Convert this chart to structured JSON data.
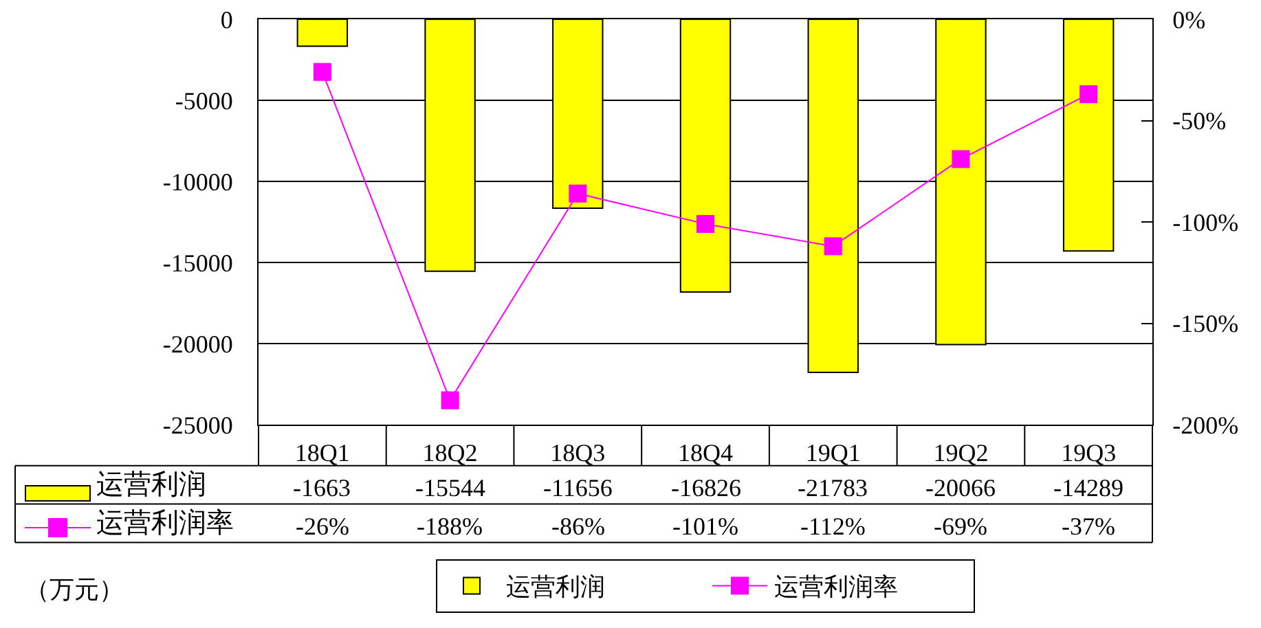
{
  "chart_data": {
    "type": "bar",
    "categories": [
      "18Q1",
      "18Q2",
      "18Q3",
      "18Q4",
      "19Q1",
      "19Q2",
      "19Q3"
    ],
    "series": [
      {
        "name": "运营利润",
        "color": "#ffff00",
        "values": [
          -1663,
          -15544,
          -11656,
          -16826,
          -21783,
          -20066,
          -14289
        ],
        "value_labels": [
          "-1663",
          "-15544",
          "-11656",
          "-16826",
          "-21783",
          "-20066",
          "-14289"
        ]
      },
      {
        "name": "运营利润率",
        "type": "line",
        "axis": "y2",
        "color": "#ff00ff",
        "values": [
          -26,
          -188,
          -86,
          -101,
          -112,
          -69,
          -37
        ],
        "value_labels": [
          "-26%",
          "-188%",
          "-86%",
          "-101%",
          "-112%",
          "-69%",
          "-37%"
        ]
      }
    ],
    "ylim": [
      -25000,
      0
    ],
    "yticks": [
      0,
      -5000,
      -10000,
      -15000,
      -20000,
      -25000
    ],
    "y2lim": [
      -200,
      0
    ],
    "y2ticks": [
      {
        "value": 0,
        "label": "0%"
      },
      {
        "value": -50,
        "label": "-50%"
      },
      {
        "value": -100,
        "label": "-100%"
      },
      {
        "value": -150,
        "label": "-150%"
      },
      {
        "value": -200,
        "label": "-200%"
      }
    ],
    "grid": "y",
    "legend": "bottom",
    "marker": "square",
    "annotations": [
      "（万元）"
    ]
  }
}
